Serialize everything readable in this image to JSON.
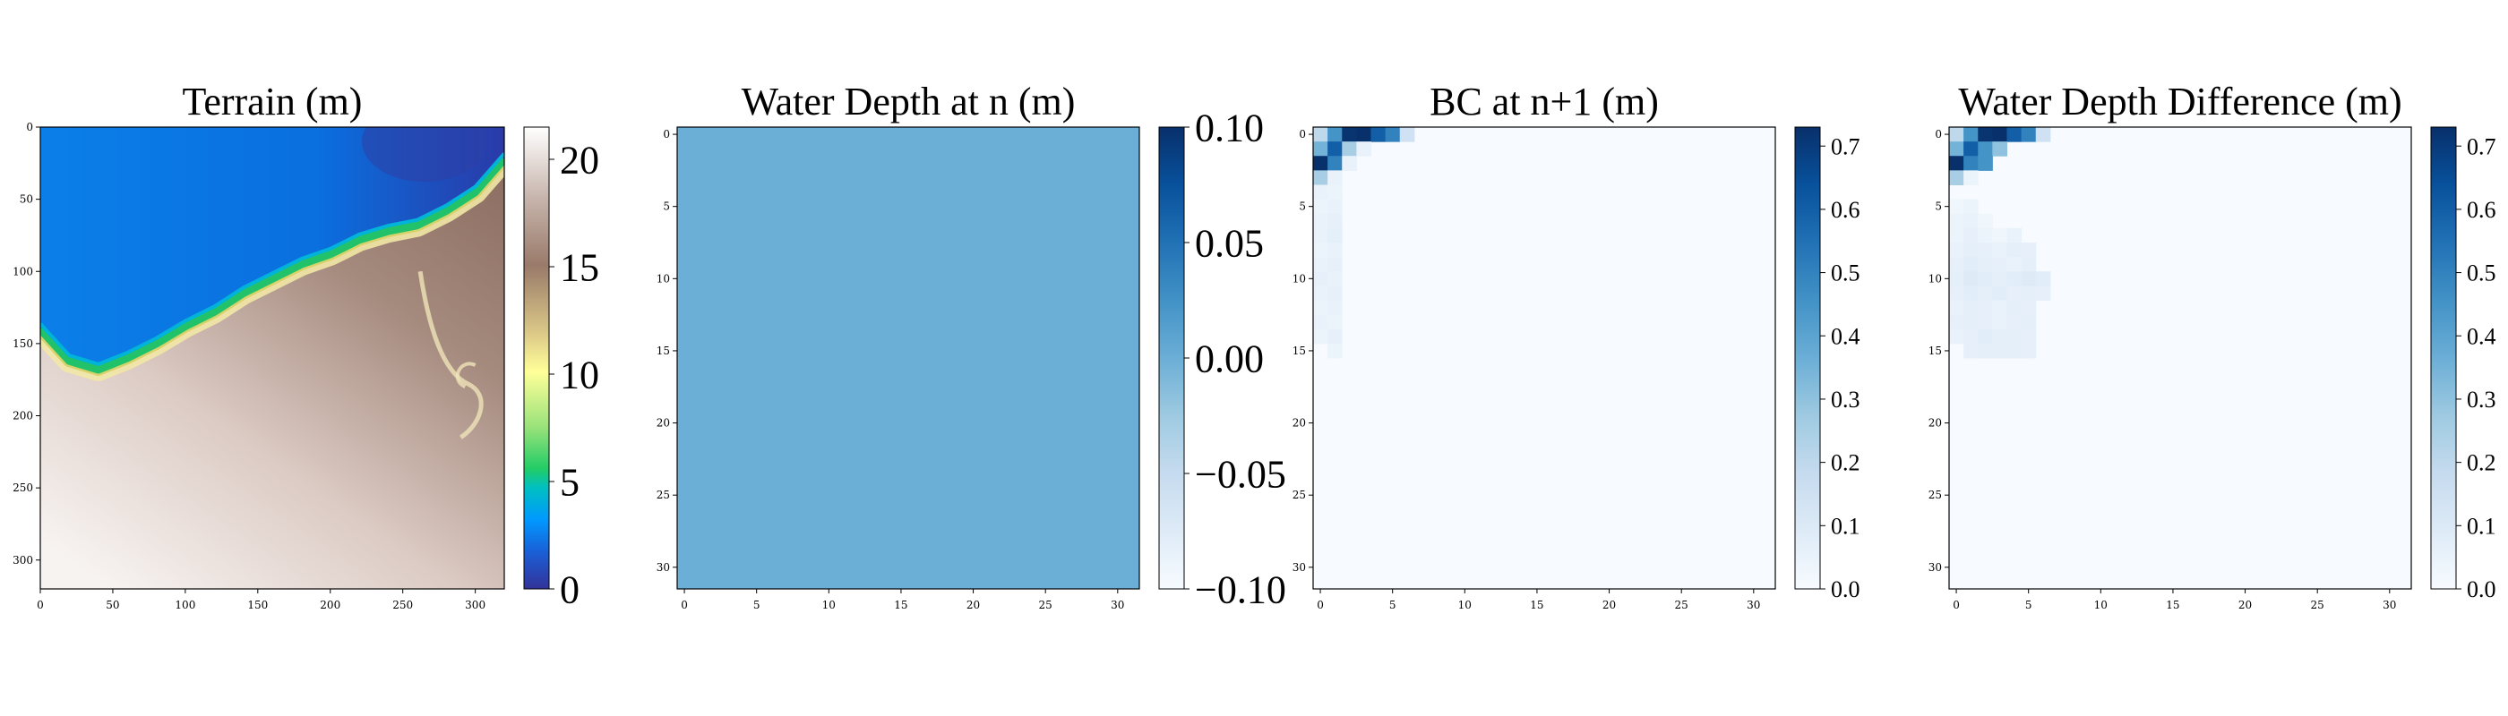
{
  "figure": {
    "background": "#ffffff"
  },
  "chart_data": [
    {
      "type": "heatmap",
      "title": "Terrain (m)",
      "colormap": "terrain",
      "xlim": [
        0,
        320
      ],
      "ylim": [
        320,
        0
      ],
      "x_ticks": [
        "0",
        "50",
        "100",
        "150",
        "200",
        "250",
        "300"
      ],
      "y_ticks": [
        "0",
        "50",
        "100",
        "150",
        "200",
        "250",
        "300"
      ],
      "x_tick_values": [
        0,
        50,
        100,
        150,
        200,
        250,
        300
      ],
      "y_tick_values": [
        0,
        50,
        100,
        150,
        200,
        250,
        300
      ],
      "colorbar": {
        "min": 0,
        "max": 21.5,
        "ticks": [
          "0",
          "5",
          "10",
          "15",
          "20"
        ],
        "tick_values": [
          0,
          5,
          10,
          15,
          20
        ]
      },
      "shoreline_x": [
        0,
        20,
        40,
        60,
        80,
        100,
        120,
        140,
        160,
        180,
        200,
        220,
        240,
        260,
        280,
        300,
        320
      ],
      "shoreline_y": [
        140,
        162,
        168,
        160,
        150,
        138,
        128,
        115,
        105,
        95,
        88,
        78,
        72,
        68,
        58,
        45,
        22
      ]
    },
    {
      "type": "heatmap",
      "title": "Water Depth at n (m)",
      "colormap": "Blues",
      "xlim": [
        0,
        32
      ],
      "ylim": [
        32,
        0
      ],
      "x_ticks": [
        "0",
        "5",
        "10",
        "15",
        "20",
        "25",
        "30"
      ],
      "y_ticks": [
        "0",
        "5",
        "10",
        "15",
        "20",
        "25",
        "30"
      ],
      "x_tick_values": [
        0,
        5,
        10,
        15,
        20,
        25,
        30
      ],
      "y_tick_values": [
        0,
        5,
        10,
        15,
        20,
        25,
        30
      ],
      "uniform_value": 0.0,
      "colorbar": {
        "min": -0.1,
        "max": 0.1,
        "ticks": [
          "0.10",
          "0.05",
          "0.00",
          "−0.05",
          "−0.10"
        ],
        "tick_values": [
          0.1,
          0.05,
          0.0,
          -0.05,
          -0.1
        ]
      }
    },
    {
      "type": "heatmap",
      "title": "BC at n+1 (m)",
      "colormap": "Blues",
      "xlim": [
        0,
        32
      ],
      "ylim": [
        32,
        0
      ],
      "x_ticks": [
        "0",
        "5",
        "10",
        "15",
        "20",
        "25",
        "30"
      ],
      "y_ticks": [
        "0",
        "5",
        "10",
        "15",
        "20",
        "25",
        "30"
      ],
      "x_tick_values": [
        0,
        5,
        10,
        15,
        20,
        25,
        30
      ],
      "y_tick_values": [
        0,
        5,
        10,
        15,
        20,
        25,
        30
      ],
      "colorbar": {
        "min": 0,
        "max": 0.73,
        "ticks": [
          "0.7",
          "0.6",
          "0.5",
          "0.4",
          "0.3",
          "0.2",
          "0.1",
          "0.0"
        ],
        "tick_values": [
          0.7,
          0.6,
          0.5,
          0.4,
          0.3,
          0.2,
          0.1,
          0.0
        ]
      },
      "cells": [
        [
          0,
          0,
          0.2
        ],
        [
          1,
          0,
          0.45
        ],
        [
          2,
          0,
          0.72
        ],
        [
          3,
          0,
          0.73
        ],
        [
          4,
          0,
          0.6
        ],
        [
          5,
          0,
          0.5
        ],
        [
          6,
          0,
          0.15
        ],
        [
          0,
          1,
          0.35
        ],
        [
          1,
          1,
          0.6
        ],
        [
          2,
          1,
          0.25
        ],
        [
          3,
          1,
          0.05
        ],
        [
          0,
          2,
          0.73
        ],
        [
          1,
          2,
          0.5
        ],
        [
          2,
          2,
          0.05
        ],
        [
          0,
          3,
          0.25
        ],
        [
          1,
          3,
          0.05
        ],
        [
          0,
          4,
          0.05
        ],
        [
          1,
          4,
          0.04
        ],
        [
          0,
          5,
          0.04
        ],
        [
          1,
          5,
          0.05
        ],
        [
          0,
          6,
          0.05
        ],
        [
          1,
          6,
          0.06
        ],
        [
          0,
          7,
          0.05
        ],
        [
          1,
          7,
          0.07
        ],
        [
          0,
          8,
          0.04
        ],
        [
          1,
          8,
          0.05
        ],
        [
          0,
          9,
          0.05
        ],
        [
          1,
          9,
          0.06
        ],
        [
          0,
          10,
          0.06
        ],
        [
          1,
          10,
          0.05
        ],
        [
          0,
          11,
          0.05
        ],
        [
          1,
          11,
          0.06
        ],
        [
          0,
          12,
          0.04
        ],
        [
          1,
          12,
          0.05
        ],
        [
          0,
          13,
          0.05
        ],
        [
          1,
          13,
          0.04
        ],
        [
          0,
          14,
          0.04
        ],
        [
          1,
          14,
          0.06
        ],
        [
          1,
          15,
          0.04
        ]
      ]
    },
    {
      "type": "heatmap",
      "title": "Water Depth Difference (m)",
      "colormap": "Blues",
      "xlim": [
        0,
        32
      ],
      "ylim": [
        32,
        0
      ],
      "x_ticks": [
        "0",
        "5",
        "10",
        "15",
        "20",
        "25",
        "30"
      ],
      "y_ticks": [
        "0",
        "5",
        "10",
        "15",
        "20",
        "25",
        "30"
      ],
      "x_tick_values": [
        0,
        5,
        10,
        15,
        20,
        25,
        30
      ],
      "y_tick_values": [
        0,
        5,
        10,
        15,
        20,
        25,
        30
      ],
      "colorbar": {
        "min": 0,
        "max": 0.73,
        "ticks": [
          "0.7",
          "0.6",
          "0.5",
          "0.4",
          "0.3",
          "0.2",
          "0.1",
          "0.0"
        ],
        "tick_values": [
          0.7,
          0.6,
          0.5,
          0.4,
          0.3,
          0.2,
          0.1,
          0.0
        ]
      },
      "cells": [
        [
          0,
          0,
          0.2
        ],
        [
          1,
          0,
          0.45
        ],
        [
          2,
          0,
          0.72
        ],
        [
          3,
          0,
          0.73
        ],
        [
          4,
          0,
          0.6
        ],
        [
          5,
          0,
          0.5
        ],
        [
          6,
          0,
          0.15
        ],
        [
          0,
          1,
          0.35
        ],
        [
          1,
          1,
          0.6
        ],
        [
          2,
          1,
          0.45
        ],
        [
          3,
          1,
          0.3
        ],
        [
          0,
          2,
          0.73
        ],
        [
          1,
          2,
          0.5
        ],
        [
          2,
          2,
          0.45
        ],
        [
          0,
          3,
          0.25
        ],
        [
          1,
          3,
          0.04
        ],
        [
          0,
          5,
          0.03
        ],
        [
          1,
          5,
          0.04
        ],
        [
          0,
          6,
          0.04
        ],
        [
          1,
          6,
          0.05
        ],
        [
          2,
          6,
          0.03
        ],
        [
          0,
          7,
          0.04
        ],
        [
          1,
          7,
          0.06
        ],
        [
          2,
          7,
          0.04
        ],
        [
          3,
          7,
          0.03
        ],
        [
          4,
          7,
          0.05
        ],
        [
          0,
          8,
          0.05
        ],
        [
          1,
          8,
          0.07
        ],
        [
          2,
          8,
          0.06
        ],
        [
          3,
          8,
          0.05
        ],
        [
          4,
          8,
          0.07
        ],
        [
          5,
          8,
          0.06
        ],
        [
          0,
          9,
          0.06
        ],
        [
          1,
          9,
          0.08
        ],
        [
          2,
          9,
          0.07
        ],
        [
          3,
          9,
          0.06
        ],
        [
          4,
          9,
          0.05
        ],
        [
          5,
          9,
          0.07
        ],
        [
          0,
          10,
          0.07
        ],
        [
          1,
          10,
          0.09
        ],
        [
          2,
          10,
          0.08
        ],
        [
          3,
          10,
          0.07
        ],
        [
          4,
          10,
          0.08
        ],
        [
          5,
          10,
          0.09
        ],
        [
          6,
          10,
          0.08
        ],
        [
          0,
          11,
          0.06
        ],
        [
          1,
          11,
          0.08
        ],
        [
          2,
          11,
          0.07
        ],
        [
          3,
          11,
          0.08
        ],
        [
          4,
          11,
          0.06
        ],
        [
          5,
          11,
          0.07
        ],
        [
          6,
          11,
          0.06
        ],
        [
          0,
          12,
          0.05
        ],
        [
          1,
          12,
          0.07
        ],
        [
          2,
          12,
          0.06
        ],
        [
          3,
          12,
          0.05
        ],
        [
          4,
          12,
          0.07
        ],
        [
          5,
          12,
          0.06
        ],
        [
          0,
          13,
          0.06
        ],
        [
          1,
          13,
          0.07
        ],
        [
          2,
          13,
          0.06
        ],
        [
          3,
          13,
          0.05
        ],
        [
          4,
          13,
          0.06
        ],
        [
          5,
          13,
          0.07
        ],
        [
          0,
          14,
          0.05
        ],
        [
          1,
          14,
          0.06
        ],
        [
          2,
          14,
          0.08
        ],
        [
          3,
          14,
          0.07
        ],
        [
          4,
          14,
          0.07
        ],
        [
          5,
          14,
          0.06
        ],
        [
          1,
          15,
          0.06
        ],
        [
          2,
          15,
          0.07
        ],
        [
          3,
          15,
          0.07
        ],
        [
          4,
          15,
          0.07
        ],
        [
          5,
          15,
          0.06
        ]
      ]
    }
  ]
}
